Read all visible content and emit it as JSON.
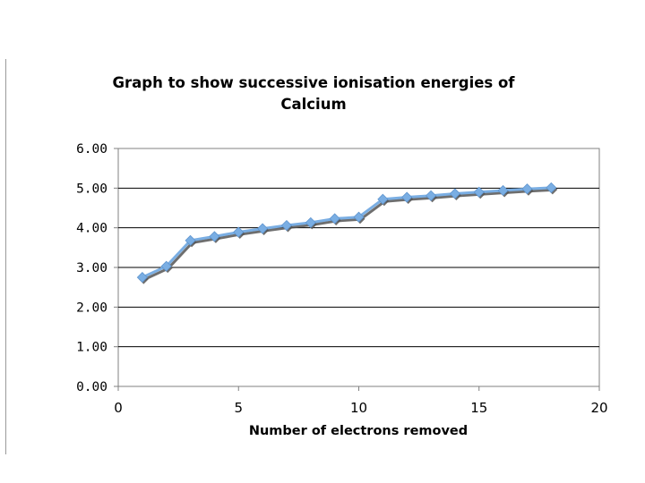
{
  "chart_data": {
    "type": "line",
    "title_lines": [
      "Graph to show successive ionisation energies of",
      "Calcium"
    ],
    "xlabel": "Number of electrons removed",
    "ylabel": "",
    "xlim": [
      0,
      20
    ],
    "ylim": [
      0,
      6
    ],
    "x_ticks": [
      "0",
      "5",
      "10",
      "15",
      "20"
    ],
    "x_tick_values": [
      0,
      5,
      10,
      15,
      20
    ],
    "y_ticks": [
      "0.00",
      "1.00",
      "2.00",
      "3.00",
      "4.00",
      "5.00",
      "6.00"
    ],
    "y_tick_values": [
      0,
      1,
      2,
      3,
      4,
      5,
      6
    ],
    "grid": true,
    "legend": "none",
    "series": [
      {
        "name": "Calcium",
        "x": [
          1,
          2,
          3,
          4,
          5,
          6,
          7,
          8,
          9,
          10,
          11,
          12,
          13,
          14,
          15,
          16,
          17,
          18
        ],
        "values": [
          2.75,
          3.03,
          3.68,
          3.78,
          3.89,
          3.98,
          4.06,
          4.13,
          4.23,
          4.27,
          4.72,
          4.77,
          4.81,
          4.86,
          4.9,
          4.94,
          4.98,
          5.01
        ]
      }
    ]
  },
  "colors": {
    "line": "#7aaee3",
    "marker": "#7aaee3",
    "shadow": "#555555",
    "grid": "#000000",
    "axis": "#808080"
  }
}
